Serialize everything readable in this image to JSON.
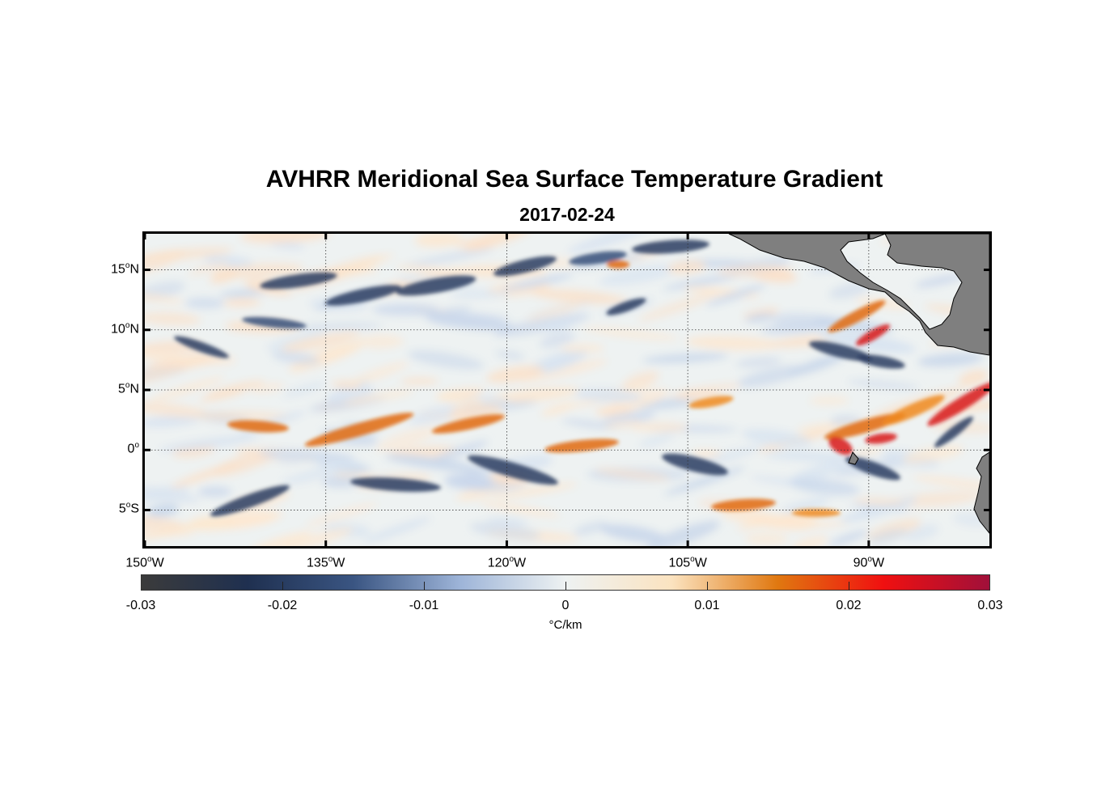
{
  "title": "AVHRR Meridional Sea Surface Temperature Gradient",
  "subtitle": "2017-02-24",
  "map": {
    "lon_range": [
      -150,
      -80
    ],
    "lat_range": [
      -8,
      18
    ],
    "land_color": "#7f7f7f",
    "ocean_base_color": "#eef2f2",
    "lat_labels": [
      {
        "value": 15,
        "deg": "15",
        "hemi": "N"
      },
      {
        "value": 10,
        "deg": "10",
        "hemi": "N"
      },
      {
        "value": 5,
        "deg": "5",
        "hemi": "N"
      },
      {
        "value": 0,
        "deg": "0",
        "hemi": ""
      },
      {
        "value": -5,
        "deg": "5",
        "hemi": "S"
      }
    ],
    "lon_labels": [
      {
        "value": -150,
        "deg": "150",
        "hemi": "W"
      },
      {
        "value": -135,
        "deg": "135",
        "hemi": "W"
      },
      {
        "value": -120,
        "deg": "120",
        "hemi": "W"
      },
      {
        "value": -105,
        "deg": "105",
        "hemi": "W"
      },
      {
        "value": -90,
        "deg": "90",
        "hemi": "W"
      }
    ]
  },
  "colorbar": {
    "range": [
      -0.03,
      0.03
    ],
    "ticks": [
      "-0.03",
      "-0.02",
      "-0.01",
      "0",
      "0.01",
      "0.02",
      "0.03"
    ],
    "unit": "°C/km",
    "colors": [
      "#3b3b3b",
      "#1f3050",
      "#3a5582",
      "#9db4d8",
      "#eef2f2",
      "#fbe3c0",
      "#e07810",
      "#f01010",
      "#a0103a"
    ]
  }
}
